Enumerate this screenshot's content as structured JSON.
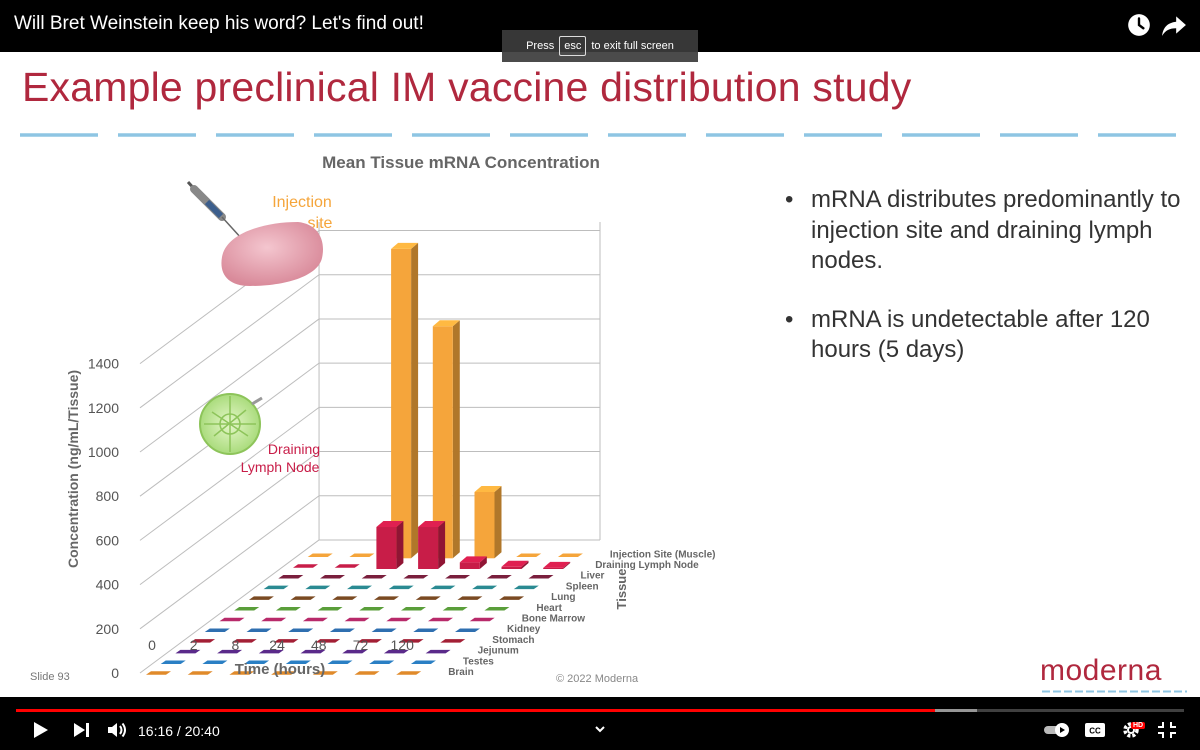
{
  "video": {
    "title": "Will Bret Weinstein keep his word? Let's find out!",
    "esc_hint_press": "Press",
    "esc_hint_key": "esc",
    "esc_hint_rest": "to exit full screen"
  },
  "slide": {
    "title": "Example preclinical IM vaccine distribution study",
    "bullets": [
      "mRNA distributes predominantly to injection site and draining lymph nodes.",
      "mRNA is undetectable after 120 hours (5 days)"
    ],
    "slide_number": "Slide 93",
    "copyright": "© 2022 Moderna",
    "logo_text": "moderna",
    "colors": {
      "accent": "#b0283e",
      "rule": "#8ec5e3"
    }
  },
  "chart_data": {
    "type": "bar",
    "title": "Mean Tissue mRNA Concentration",
    "xlabel": "Time (hours)",
    "ylabel": "Concentration (ng/mL/Tissue)",
    "zlabel": "Tissue",
    "categories": [
      "0",
      "2",
      "8",
      "24",
      "48",
      "72",
      "120"
    ],
    "yticks": [
      "0",
      "200",
      "400",
      "600",
      "800",
      "1000",
      "1200",
      "1400"
    ],
    "ylim": [
      0,
      1400
    ],
    "annotations": [
      {
        "text": "Injection site",
        "lines": [
          "Injection",
          "site"
        ],
        "color": "#f5a53b"
      },
      {
        "text": "Draining Lymph Node",
        "lines": [
          "Draining",
          "Lymph Node"
        ],
        "color": "#c81d48"
      }
    ],
    "series": [
      {
        "name": "Injection Site (Muscle)",
        "color": "#f5a53b",
        "values": [
          0,
          0,
          1400,
          1050,
          300,
          0,
          0
        ]
      },
      {
        "name": "Draining Lymph Node",
        "color": "#c81d48",
        "values": [
          0,
          0,
          190,
          190,
          30,
          10,
          5
        ]
      },
      {
        "name": "Liver",
        "color": "#7a1f3d",
        "values": [
          0,
          0,
          0,
          0,
          0,
          0,
          0
        ]
      },
      {
        "name": "Spleen",
        "color": "#2a8a92",
        "values": [
          0,
          0,
          0,
          0,
          0,
          0,
          0
        ]
      },
      {
        "name": "Lung",
        "color": "#7a4a22",
        "values": [
          0,
          0,
          0,
          0,
          0,
          0,
          0
        ]
      },
      {
        "name": "Heart",
        "color": "#5a9e3a",
        "values": [
          0,
          0,
          0,
          0,
          0,
          0,
          0
        ]
      },
      {
        "name": "Bone Marrow",
        "color": "#b82a6a",
        "values": [
          0,
          0,
          0,
          0,
          0,
          0,
          0
        ]
      },
      {
        "name": "Kidney",
        "color": "#2f6fb0",
        "values": [
          0,
          0,
          0,
          0,
          0,
          0,
          0
        ]
      },
      {
        "name": "Stomach",
        "color": "#a31f35",
        "values": [
          0,
          0,
          0,
          0,
          0,
          0,
          0
        ]
      },
      {
        "name": "Jejunum",
        "color": "#5a2a8a",
        "values": [
          0,
          0,
          0,
          0,
          0,
          0,
          0
        ]
      },
      {
        "name": "Testes",
        "color": "#2a7fc4",
        "values": [
          0,
          0,
          0,
          0,
          0,
          0,
          0
        ]
      },
      {
        "name": "Brain",
        "color": "#e08a2a",
        "values": [
          0,
          0,
          0,
          0,
          0,
          0,
          0
        ]
      }
    ]
  },
  "player": {
    "current_time": "16:16",
    "duration": "20:40",
    "time_text": "16:16 / 20:40",
    "progress": 0.787,
    "buffered": 0.823,
    "hd_badge": "HD",
    "icons": [
      "play-icon",
      "next-icon",
      "volume-icon",
      "chevron-down-icon",
      "autoplay-toggle",
      "captions-icon",
      "settings-icon",
      "exit-fullscreen-icon",
      "watch-later-icon",
      "share-icon"
    ]
  }
}
